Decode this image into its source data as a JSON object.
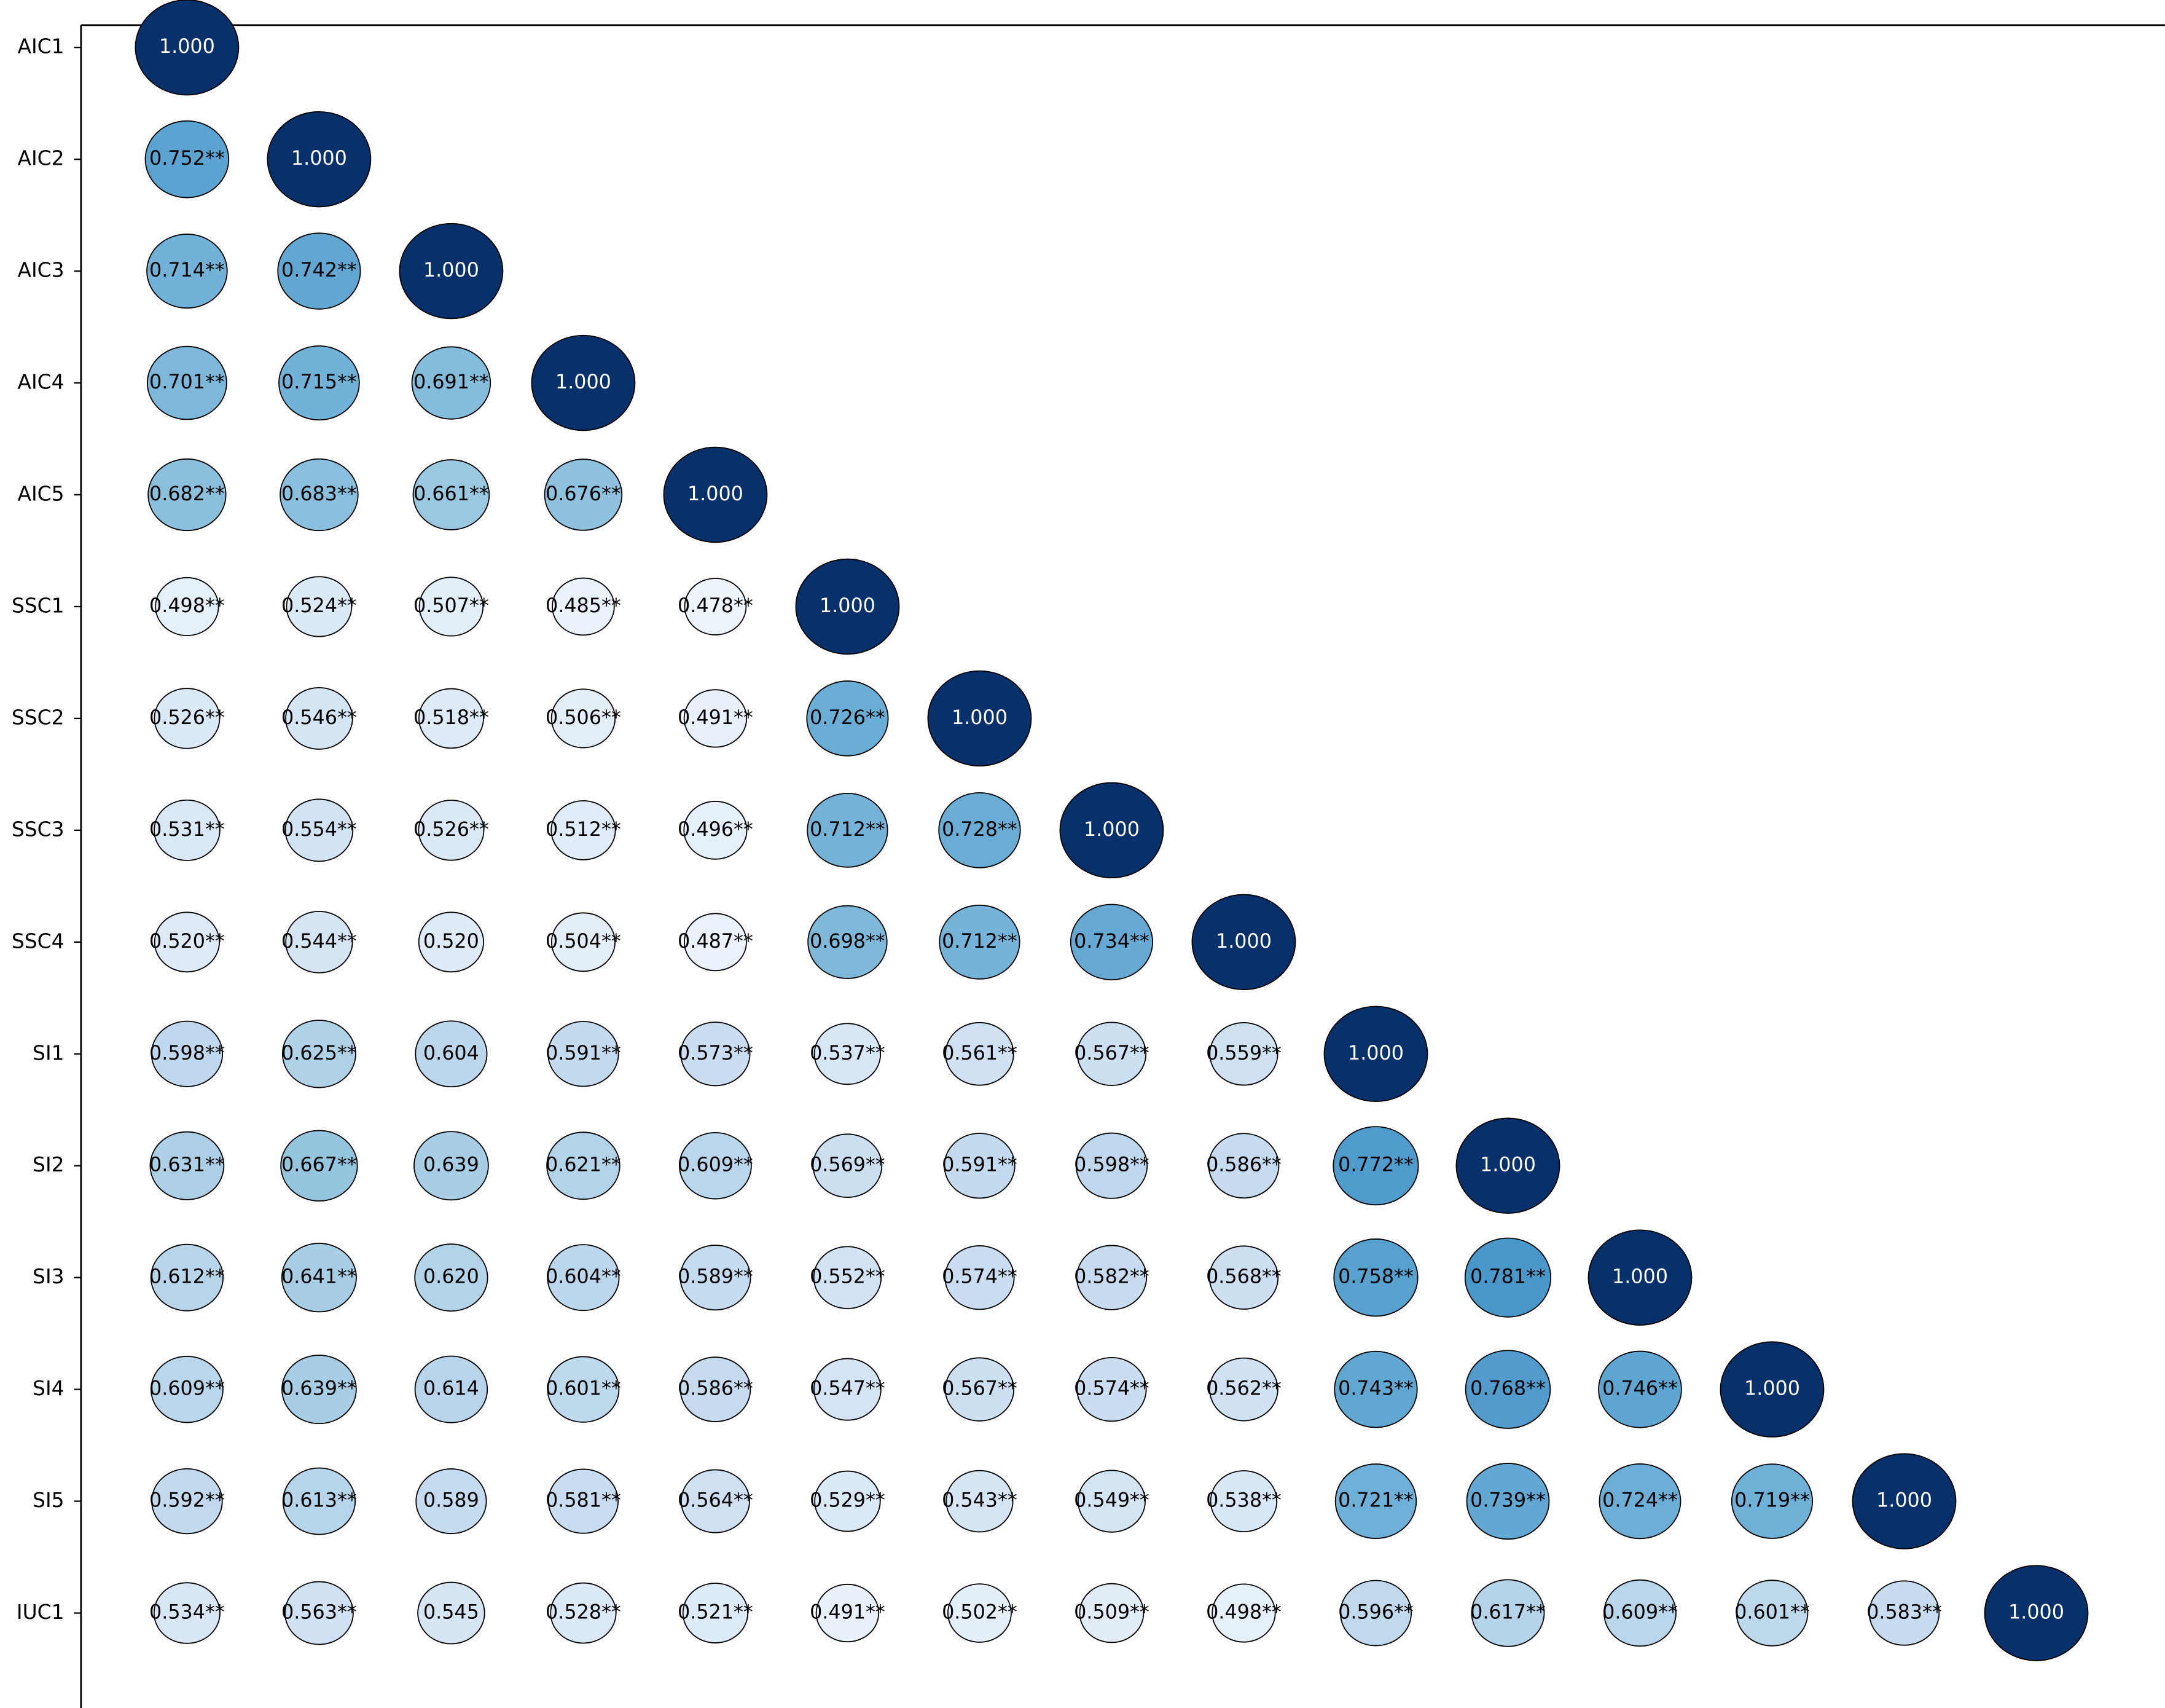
{
  "chart_data": {
    "type": "correlation-bubble",
    "categories": [
      "AIC1",
      "AIC2",
      "AIC3",
      "AIC4",
      "AIC5",
      "SSC1",
      "SSC2",
      "SSC3",
      "SSC4",
      "SI1",
      "SI2",
      "SI3",
      "SI4",
      "SI5",
      "IUC1"
    ],
    "clim": [
      0.45,
      1
    ],
    "values": [
      [
        1
      ],
      [
        0.752,
        1
      ],
      [
        0.714,
        0.742,
        1
      ],
      [
        0.701,
        0.715,
        0.691,
        1
      ],
      [
        0.682,
        0.683,
        0.661,
        0.676,
        1
      ],
      [
        0.498,
        0.524,
        0.507,
        0.485,
        0.478,
        1
      ],
      [
        0.526,
        0.546,
        0.518,
        0.506,
        0.491,
        0.726,
        1
      ],
      [
        0.531,
        0.554,
        0.526,
        0.512,
        0.496,
        0.712,
        0.728,
        1
      ],
      [
        0.52,
        0.544,
        0.52,
        0.504,
        0.487,
        0.698,
        0.712,
        0.734,
        1
      ],
      [
        0.598,
        0.625,
        0.604,
        0.591,
        0.573,
        0.537,
        0.561,
        0.567,
        0.559,
        1
      ],
      [
        0.631,
        0.667,
        0.639,
        0.621,
        0.609,
        0.569,
        0.591,
        0.598,
        0.586,
        0.772,
        1
      ],
      [
        0.612,
        0.641,
        0.62,
        0.604,
        0.589,
        0.552,
        0.574,
        0.582,
        0.568,
        0.758,
        0.781,
        1
      ],
      [
        0.609,
        0.639,
        0.614,
        0.601,
        0.586,
        0.547,
        0.567,
        0.574,
        0.562,
        0.743,
        0.768,
        0.746,
        1
      ],
      [
        0.592,
        0.613,
        0.589,
        0.581,
        0.564,
        0.529,
        0.543,
        0.549,
        0.538,
        0.721,
        0.739,
        0.724,
        0.719,
        1
      ],
      [
        0.534,
        0.563,
        0.545,
        0.528,
        0.521,
        0.491,
        0.502,
        0.509,
        0.498,
        0.596,
        0.617,
        0.609,
        0.601,
        0.583,
        1
      ]
    ],
    "value_labels": [
      [
        "1.000"
      ],
      [
        "0.752**",
        "1.000"
      ],
      [
        "0.714**",
        "0.742**",
        "1.000"
      ],
      [
        "0.701**",
        "0.715**",
        "0.691**",
        "1.000"
      ],
      [
        "0.682**",
        "0.683**",
        "0.661**",
        "0.676**",
        "1.000"
      ],
      [
        "0.498**",
        "0.524**",
        "0.507**",
        "0.485**",
        "0.478**",
        "1.000"
      ],
      [
        "0.526**",
        "0.546**",
        "0.518**",
        "0.506**",
        "0.491**",
        "0.726**",
        "1.000"
      ],
      [
        "0.531**",
        "0.554**",
        "0.526**",
        "0.512**",
        "0.496**",
        "0.712**",
        "0.728**",
        "1.000"
      ],
      [
        "0.520**",
        "0.544**",
        "0.520",
        "0.504**",
        "0.487**",
        "0.698**",
        "0.712**",
        "0.734**",
        "1.000"
      ],
      [
        "0.598**",
        "0.625**",
        "0.604",
        "0.591**",
        "0.573**",
        "0.537**",
        "0.561**",
        "0.567**",
        "0.559**",
        "1.000"
      ],
      [
        "0.631**",
        "0.667**",
        "0.639",
        "0.621**",
        "0.609**",
        "0.569**",
        "0.591**",
        "0.598**",
        "0.586**",
        "0.772**",
        "1.000"
      ],
      [
        "0.612**",
        "0.641**",
        "0.620",
        "0.604**",
        "0.589**",
        "0.552**",
        "0.574**",
        "0.582**",
        "0.568**",
        "0.758**",
        "0.781**",
        "1.000"
      ],
      [
        "0.609**",
        "0.639**",
        "0.614",
        "0.601**",
        "0.586**",
        "0.547**",
        "0.567**",
        "0.574**",
        "0.562**",
        "0.743**",
        "0.768**",
        "0.746**",
        "1.000"
      ],
      [
        "0.592**",
        "0.613**",
        "0.589",
        "0.581**",
        "0.564**",
        "0.529**",
        "0.543**",
        "0.549**",
        "0.538**",
        "0.721**",
        "0.739**",
        "0.724**",
        "0.719**",
        "1.000"
      ],
      [
        "0.534**",
        "0.563**",
        "0.545",
        "0.528**",
        "0.521**",
        "0.491**",
        "0.502**",
        "0.509**",
        "0.498**",
        "0.596**",
        "0.617**",
        "0.609**",
        "0.601**",
        "0.583**",
        "1.000"
      ]
    ]
  }
}
